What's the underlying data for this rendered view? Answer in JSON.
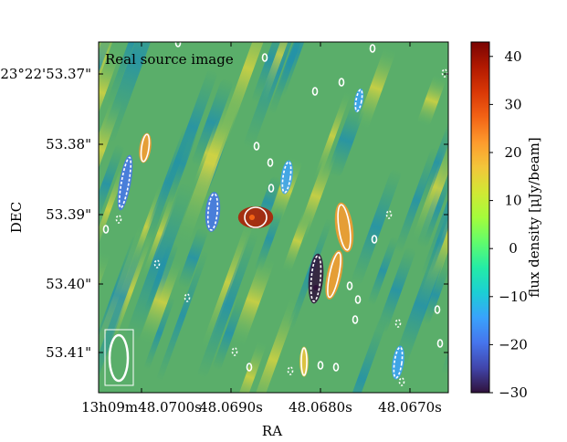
{
  "chart_data": {
    "type": "heatmap",
    "panel_label": "Real source image",
    "xlabel": "RA",
    "ylabel": "DEC",
    "x_ticks": [
      "13h09m48.0700s",
      "48.0690s",
      "48.0680s",
      "48.0670s"
    ],
    "y_ticks": [
      "-23°22'53.37\"",
      "53.38\"",
      "53.39\"",
      "53.40\"",
      "53.41\""
    ],
    "colorbar": {
      "label": "flux density [μJy/beam]",
      "range": [
        -30,
        43
      ],
      "ticks": [
        40,
        30,
        20,
        10,
        0,
        -10,
        -20,
        -30
      ],
      "colormap": "turbo"
    },
    "contours": {
      "positive_style": "solid white",
      "negative_style": "dashed white",
      "features": [
        {
          "kind": "positive",
          "ra": "48.06913",
          "dec": 53.389,
          "peak": 38
        },
        {
          "kind": "positive",
          "ra": "48.06817",
          "dec": 53.3892,
          "peak": 22
        },
        {
          "kind": "positive",
          "ra": "48.06831",
          "dec": 53.3998,
          "peak": 20
        },
        {
          "kind": "positive",
          "ra": "48.06984",
          "dec": 53.3799,
          "peak": 22
        },
        {
          "kind": "positive",
          "ra": "48.06862",
          "dec": 53.4113,
          "peak": 15
        },
        {
          "kind": "negative",
          "ra": "48.06791",
          "dec": 53.3997,
          "peak": -30
        },
        {
          "kind": "negative",
          "ra": "48.06994",
          "dec": 53.3833,
          "peak": -22
        },
        {
          "kind": "negative",
          "ra": "48.06939",
          "dec": 53.3891,
          "peak": -20
        },
        {
          "kind": "negative",
          "ra": "48.06866",
          "dec": 53.3836,
          "peak": -15
        },
        {
          "kind": "negative",
          "ra": "48.06745",
          "dec": 53.4104,
          "peak": -15
        },
        {
          "kind": "negative",
          "ra": "48.06757",
          "dec": 53.3755,
          "peak": -12
        }
      ],
      "beam": {
        "shape": "ellipse",
        "orientation": "vertical"
      }
    }
  }
}
